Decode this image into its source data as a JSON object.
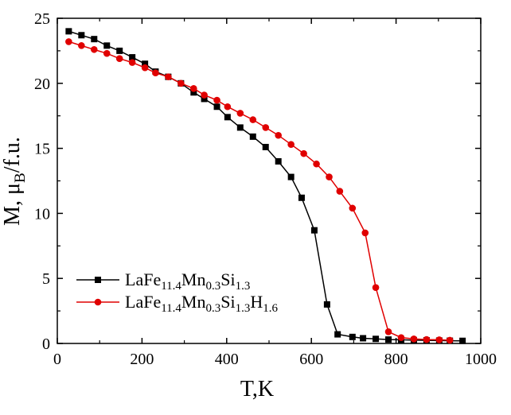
{
  "chart_data": {
    "type": "line",
    "xlabel": "T,K",
    "ylabel": {
      "base": "M, μ",
      "sub": "B",
      "tail": "/f.u."
    },
    "xlim": [
      0,
      1000
    ],
    "ylim": [
      0,
      25
    ],
    "xticks": [
      0,
      200,
      400,
      600,
      800,
      1000
    ],
    "yticks": [
      0,
      5,
      10,
      15,
      20,
      25
    ],
    "grid": false,
    "legend_position": "lower-left",
    "series": [
      {
        "legend": [
          {
            "t": "LaFe",
            "sub": false
          },
          {
            "t": "11.4",
            "sub": true
          },
          {
            "t": "Mn",
            "sub": false
          },
          {
            "t": "0.3",
            "sub": true
          },
          {
            "t": "Si",
            "sub": false
          },
          {
            "t": "1.3",
            "sub": true
          }
        ],
        "marker": "square",
        "color": "#000000",
        "x": [
          27,
          57,
          87,
          117,
          147,
          177,
          207,
          232,
          262,
          292,
          322,
          347,
          377,
          402,
          432,
          462,
          492,
          522,
          552,
          577,
          607,
          637,
          662,
          697,
          722,
          752,
          782,
          812,
          842,
          872,
          902,
          927,
          957
        ],
        "y": [
          24.0,
          23.7,
          23.4,
          22.9,
          22.5,
          22.0,
          21.5,
          20.9,
          20.5,
          20.0,
          19.3,
          18.8,
          18.2,
          17.4,
          16.6,
          15.9,
          15.1,
          14.0,
          12.8,
          11.2,
          8.7,
          3.0,
          0.7,
          0.5,
          0.4,
          0.35,
          0.3,
          0.28,
          0.25,
          0.24,
          0.22,
          0.21,
          0.2
        ]
      },
      {
        "legend": [
          {
            "t": "LaFe",
            "sub": false
          },
          {
            "t": "11.4",
            "sub": true
          },
          {
            "t": "Mn",
            "sub": false
          },
          {
            "t": "0.3",
            "sub": true
          },
          {
            "t": "Si",
            "sub": false
          },
          {
            "t": "1.3",
            "sub": true
          },
          {
            "t": "H",
            "sub": false
          },
          {
            "t": "1.6",
            "sub": true
          }
        ],
        "marker": "circle",
        "color": "#e00000",
        "x": [
          27,
          57,
          87,
          117,
          147,
          177,
          207,
          232,
          262,
          292,
          322,
          347,
          377,
          402,
          432,
          462,
          492,
          522,
          552,
          582,
          612,
          642,
          667,
          697,
          727,
          752,
          782,
          812,
          842,
          872,
          902,
          927
        ],
        "y": [
          23.2,
          22.9,
          22.6,
          22.3,
          21.9,
          21.6,
          21.2,
          20.8,
          20.5,
          20.0,
          19.6,
          19.1,
          18.7,
          18.2,
          17.7,
          17.2,
          16.6,
          16.0,
          15.3,
          14.6,
          13.8,
          12.8,
          11.7,
          10.4,
          8.5,
          4.3,
          0.9,
          0.45,
          0.35,
          0.3,
          0.28,
          0.25
        ]
      }
    ]
  }
}
